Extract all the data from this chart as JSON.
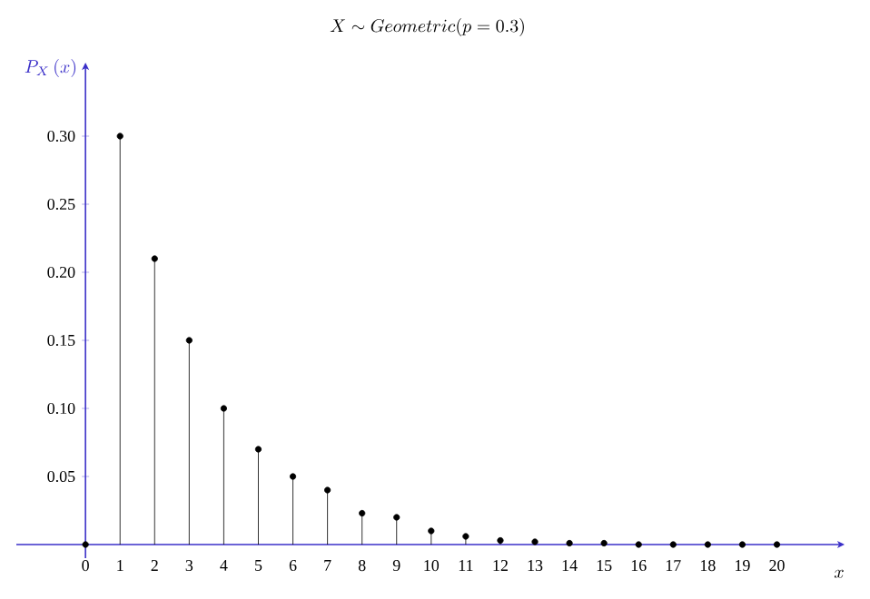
{
  "chart_data": {
    "type": "lollipop",
    "title": "X \\sim Geometric(p = 0.3)",
    "xlabel": "x",
    "ylabel": "P_X\\,(x)",
    "x": [
      0,
      1,
      2,
      3,
      4,
      5,
      6,
      7,
      8,
      9,
      10,
      11,
      12,
      13,
      14,
      15,
      16,
      17,
      18,
      19,
      20
    ],
    "values": [
      0,
      0.3,
      0.21,
      0.15,
      0.1,
      0.07,
      0.05,
      0.04,
      0.023,
      0.02,
      0.01,
      0.006,
      0.003,
      0.002,
      0.001,
      0.001,
      0,
      0,
      0,
      0,
      0
    ],
    "color": "#000000",
    "marker": "circle",
    "xlim": [
      -2,
      21.8
    ],
    "ylim": [
      -0.01,
      0.35
    ],
    "xticks": [
      0,
      1,
      2,
      3,
      4,
      5,
      6,
      7,
      8,
      9,
      10,
      11,
      12,
      13,
      14,
      15,
      16,
      17,
      18,
      19,
      20
    ],
    "yticks": [
      0.05,
      {
        "value": 0.1,
        "label": "0.10"
      },
      0.15,
      {
        "value": 0.2,
        "label": "0.20"
      },
      0.25,
      {
        "value": 0.3,
        "label": "0.30"
      }
    ],
    "line_style": "solid"
  }
}
